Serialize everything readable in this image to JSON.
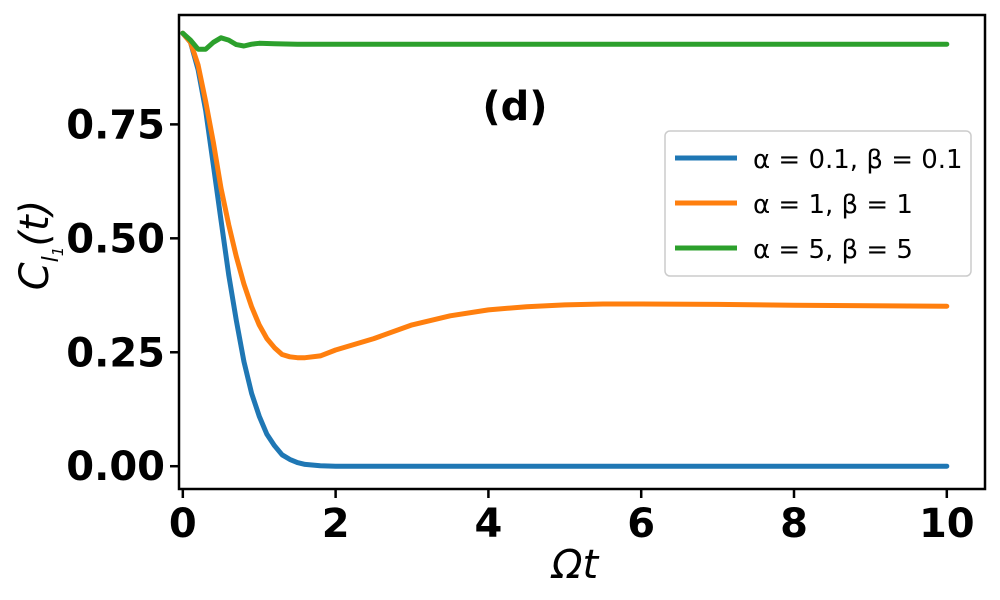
{
  "chart_data": {
    "type": "line",
    "panel_label": "(d)",
    "xlabel": "Ωt",
    "ylabel": "C_l1(t)",
    "xlim": [
      -0.05,
      10.5
    ],
    "ylim": [
      -0.05,
      0.99
    ],
    "xticks": [
      0,
      2,
      4,
      6,
      8,
      10
    ],
    "xtick_labels": [
      "0",
      "2",
      "4",
      "6",
      "8",
      "10"
    ],
    "yticks": [
      0,
      0.25,
      0.5,
      0.75
    ],
    "ytick_labels": [
      "0.00",
      "0.25",
      "0.50",
      "0.75"
    ],
    "grid": false,
    "legend_position": "right",
    "series": [
      {
        "name": "α = 0.1, β = 0.1",
        "color": "#1f77b4",
        "x": [
          0,
          0.1,
          0.2,
          0.3,
          0.4,
          0.5,
          0.6,
          0.7,
          0.8,
          0.9,
          1.0,
          1.1,
          1.2,
          1.3,
          1.4,
          1.5,
          1.6,
          1.8,
          2.0,
          2.5,
          3,
          4,
          5,
          6,
          7,
          8,
          9,
          10
        ],
        "y": [
          0.95,
          0.93,
          0.87,
          0.78,
          0.66,
          0.54,
          0.42,
          0.32,
          0.23,
          0.16,
          0.11,
          0.07,
          0.045,
          0.025,
          0.015,
          0.008,
          0.004,
          0.001,
          0.0,
          0.0,
          0.0,
          0.0,
          0.0,
          0.0,
          0.0,
          0.0,
          0.0,
          0.0
        ]
      },
      {
        "name": "α = 1, β = 1",
        "color": "#ff7f0e",
        "x": [
          0,
          0.1,
          0.2,
          0.3,
          0.4,
          0.5,
          0.6,
          0.7,
          0.8,
          0.9,
          1.0,
          1.1,
          1.2,
          1.3,
          1.4,
          1.5,
          1.6,
          1.8,
          2.0,
          2.5,
          3.0,
          3.5,
          4.0,
          4.5,
          5.0,
          5.5,
          6.0,
          7.0,
          8.0,
          9.0,
          10.0
        ],
        "y": [
          0.95,
          0.93,
          0.88,
          0.8,
          0.71,
          0.61,
          0.53,
          0.46,
          0.4,
          0.35,
          0.31,
          0.28,
          0.26,
          0.245,
          0.24,
          0.238,
          0.238,
          0.242,
          0.255,
          0.28,
          0.31,
          0.33,
          0.343,
          0.35,
          0.354,
          0.356,
          0.356,
          0.355,
          0.353,
          0.352,
          0.351
        ]
      },
      {
        "name": "α = 5, β = 5",
        "color": "#2ca02c",
        "x": [
          0,
          0.1,
          0.2,
          0.3,
          0.4,
          0.5,
          0.6,
          0.7,
          0.8,
          0.9,
          1.0,
          1.2,
          1.5,
          2.0,
          3,
          4,
          5,
          6,
          7,
          8,
          9,
          10
        ],
        "y": [
          0.95,
          0.935,
          0.915,
          0.915,
          0.93,
          0.94,
          0.935,
          0.925,
          0.922,
          0.926,
          0.928,
          0.927,
          0.926,
          0.926,
          0.926,
          0.926,
          0.926,
          0.926,
          0.926,
          0.926,
          0.926,
          0.926
        ]
      }
    ]
  }
}
